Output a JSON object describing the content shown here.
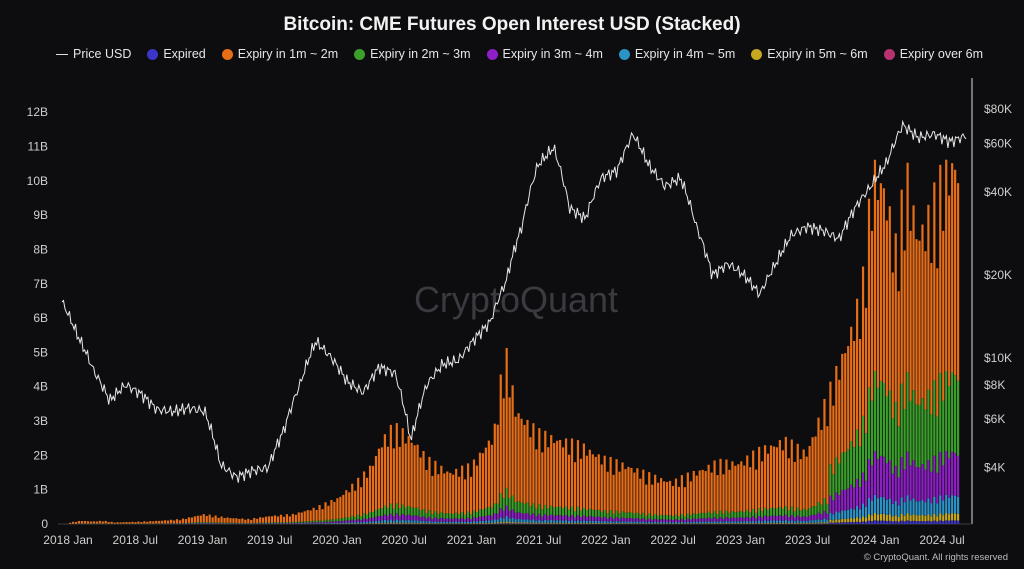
{
  "title": "Bitcoin: CME Futures Open Interest USD (Stacked)",
  "legend": [
    {
      "label": "Price USD",
      "type": "line",
      "color": "#e0e0e0"
    },
    {
      "label": "Expired",
      "type": "dot",
      "color": "#3b35c8"
    },
    {
      "label": "Expiry in 1m ~ 2m",
      "type": "dot",
      "color": "#e86d17"
    },
    {
      "label": "Expiry in 2m ~ 3m",
      "type": "dot",
      "color": "#3aa02a"
    },
    {
      "label": "Expiry in 3m ~ 4m",
      "type": "dot",
      "color": "#8e1fc6"
    },
    {
      "label": "Expiry in 4m ~ 5m",
      "type": "dot",
      "color": "#2b93c8"
    },
    {
      "label": "Expiry in 5m ~ 6m",
      "type": "dot",
      "color": "#c6a820"
    },
    {
      "label": "Expiry over 6m",
      "type": "dot",
      "color": "#b83272"
    }
  ],
  "watermark": "CryptoQuant",
  "copyright": "© CryptoQuant. All rights reserved",
  "chart_data": {
    "type": "bar",
    "x_ticks": [
      "2018 Jan",
      "2018 Jul",
      "2019 Jan",
      "2019 Jul",
      "2020 Jan",
      "2020 Jul",
      "2021 Jan",
      "2021 Jul",
      "2022 Jan",
      "2022 Jul",
      "2023 Jan",
      "2023 Jul",
      "2024 Jan",
      "2024 Jul"
    ],
    "y_left_ticks": [
      "0",
      "1B",
      "2B",
      "3B",
      "4B",
      "5B",
      "6B",
      "7B",
      "8B",
      "9B",
      "10B",
      "11B",
      "12B"
    ],
    "y_right_ticks": [
      "$4K",
      "$6K",
      "$8K",
      "$10K",
      "$20K",
      "$40K",
      "$60K",
      "$80K"
    ],
    "y_right_values": [
      4000,
      6000,
      8000,
      10000,
      20000,
      40000,
      60000,
      80000
    ],
    "ylim_left": [
      0,
      12.5
    ],
    "ylim_right_log": [
      2500,
      90000
    ],
    "stack_order": [
      "Expired",
      "Expiry in 5m ~ 6m",
      "Expiry in 4m ~ 5m",
      "Expiry in 3m ~ 4m",
      "Expiry in 2m ~ 3m",
      "Expiry in 1m ~ 2m"
    ],
    "oi_total_b": [
      [
        0.0,
        0.05
      ],
      [
        0.5,
        0.1
      ],
      [
        1.0,
        0.08
      ],
      [
        1.5,
        0.1
      ],
      [
        2.0,
        0.05
      ],
      [
        3.0,
        0.07
      ],
      [
        4.0,
        0.1
      ],
      [
        5.0,
        0.15
      ],
      [
        6.0,
        0.3
      ],
      [
        7.0,
        0.2
      ],
      [
        8.0,
        0.15
      ],
      [
        9.0,
        0.25
      ],
      [
        10.0,
        0.3
      ],
      [
        11.0,
        0.5
      ],
      [
        12.0,
        0.8
      ],
      [
        13.0,
        1.4
      ],
      [
        13.5,
        1.8
      ],
      [
        14.0,
        2.6
      ],
      [
        14.5,
        3.0
      ],
      [
        15.0,
        2.8
      ],
      [
        15.5,
        2.5
      ],
      [
        16.0,
        2.0
      ],
      [
        17.0,
        1.6
      ],
      [
        18.0,
        1.8
      ],
      [
        19.0,
        2.8
      ],
      [
        19.5,
        5.4
      ],
      [
        20.0,
        3.5
      ],
      [
        21.0,
        2.8
      ],
      [
        22.0,
        2.6
      ],
      [
        23.0,
        2.4
      ],
      [
        24.0,
        2.0
      ],
      [
        25.0,
        1.8
      ],
      [
        26.0,
        1.5
      ],
      [
        27.0,
        1.3
      ],
      [
        28.0,
        1.6
      ],
      [
        29.0,
        1.9
      ],
      [
        30.0,
        1.9
      ],
      [
        31.0,
        2.3
      ],
      [
        32.0,
        2.6
      ],
      [
        33.0,
        2.2
      ],
      [
        34.0,
        4.0
      ],
      [
        34.5,
        5.0
      ],
      [
        35.0,
        6.0
      ],
      [
        35.5,
        7.2
      ],
      [
        36.0,
        11.0
      ],
      [
        36.5,
        10.5
      ],
      [
        37.0,
        8.5
      ],
      [
        37.5,
        10.8
      ],
      [
        38.0,
        9.0
      ],
      [
        38.5,
        9.5
      ],
      [
        39.0,
        10.5
      ],
      [
        39.5,
        11.2
      ]
    ],
    "price_usd": [
      [
        0.0,
        16000
      ],
      [
        0.5,
        12000
      ],
      [
        1.0,
        9000
      ],
      [
        1.5,
        7000
      ],
      [
        2.0,
        8000
      ],
      [
        2.5,
        7400
      ],
      [
        3.0,
        6500
      ],
      [
        3.5,
        6400
      ],
      [
        4.0,
        6600
      ],
      [
        4.5,
        6400
      ],
      [
        5.0,
        4100
      ],
      [
        5.5,
        3700
      ],
      [
        6.0,
        3900
      ],
      [
        6.5,
        4000
      ],
      [
        7.0,
        5500
      ],
      [
        7.5,
        8000
      ],
      [
        8.0,
        11500
      ],
      [
        8.5,
        10000
      ],
      [
        9.0,
        8200
      ],
      [
        9.5,
        7500
      ],
      [
        10.0,
        9300
      ],
      [
        10.5,
        8800
      ],
      [
        11.0,
        5000
      ],
      [
        11.5,
        8000
      ],
      [
        12.0,
        9500
      ],
      [
        12.5,
        9800
      ],
      [
        13.0,
        11700
      ],
      [
        13.5,
        13500
      ],
      [
        14.0,
        19000
      ],
      [
        14.5,
        30000
      ],
      [
        15.0,
        50000
      ],
      [
        15.5,
        58000
      ],
      [
        16.0,
        35000
      ],
      [
        16.5,
        32000
      ],
      [
        17.0,
        45000
      ],
      [
        17.5,
        48000
      ],
      [
        18.0,
        65000
      ],
      [
        18.5,
        50000
      ],
      [
        19.0,
        42000
      ],
      [
        19.5,
        45000
      ],
      [
        20.0,
        30000
      ],
      [
        20.5,
        20000
      ],
      [
        21.0,
        22000
      ],
      [
        21.5,
        20000
      ],
      [
        22.0,
        17000
      ],
      [
        22.5,
        22000
      ],
      [
        23.0,
        28000
      ],
      [
        23.5,
        30000
      ],
      [
        24.0,
        29000
      ],
      [
        24.5,
        27000
      ],
      [
        25.0,
        35000
      ],
      [
        25.5,
        42000
      ],
      [
        26.0,
        51000
      ],
      [
        26.5,
        70000
      ],
      [
        27.0,
        63000
      ],
      [
        27.5,
        65000
      ],
      [
        28.0,
        61000
      ],
      [
        28.5,
        64000
      ]
    ],
    "price_x_ticks_index": [
      0,
      2,
      5,
      7,
      9,
      11,
      14,
      16,
      19,
      21,
      23,
      25,
      26.5,
      28.3
    ]
  }
}
